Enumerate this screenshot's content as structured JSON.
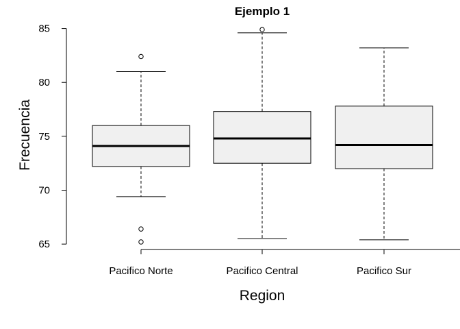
{
  "chart_data": {
    "type": "boxplot",
    "title": "Ejemplo 1",
    "xlabel": "Region",
    "ylabel": "Frecuencia",
    "ylim": [
      64.5,
      85.8
    ],
    "yticks": [
      65,
      70,
      75,
      80,
      85
    ],
    "grid": false,
    "categories": [
      "Pacifico Norte",
      "Pacifico Central",
      "Pacifico Sur"
    ],
    "boxes": [
      {
        "category": "Pacifico Norte",
        "whisker_low": 69.4,
        "q1": 72.2,
        "median": 74.1,
        "q3": 76.0,
        "whisker_high": 81.0,
        "outliers": [
          82.4,
          66.4,
          65.2
        ]
      },
      {
        "category": "Pacifico Central",
        "whisker_low": 65.5,
        "q1": 72.5,
        "median": 74.8,
        "q3": 77.3,
        "whisker_high": 84.6,
        "outliers": [
          84.9
        ]
      },
      {
        "category": "Pacifico Sur",
        "whisker_low": 65.4,
        "q1": 72.0,
        "median": 74.2,
        "q3": 77.8,
        "whisker_high": 83.2,
        "outliers": []
      }
    ],
    "box_fill": "#f0f0f0",
    "line_color": "#000000"
  }
}
